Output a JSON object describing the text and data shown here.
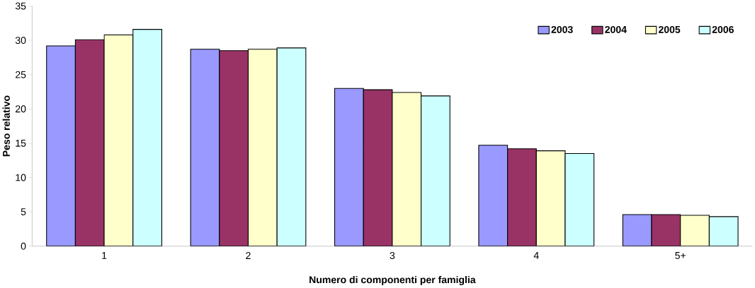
{
  "chart_data": {
    "type": "bar",
    "xlabel": "Numero di componenti per famiglia",
    "ylabel": "Peso relativo",
    "categories": [
      "1",
      "2",
      "3",
      "4",
      "5+"
    ],
    "series": [
      {
        "name": "2003",
        "color": "#9999ff",
        "values": [
          29.2,
          28.7,
          23.0,
          14.7,
          4.6
        ]
      },
      {
        "name": "2004",
        "color": "#993366",
        "values": [
          30.1,
          28.5,
          22.8,
          14.2,
          4.6
        ]
      },
      {
        "name": "2005",
        "color": "#ffffcc",
        "values": [
          30.8,
          28.7,
          22.4,
          13.9,
          4.5
        ]
      },
      {
        "name": "2006",
        "color": "#ccffff",
        "values": [
          31.6,
          28.9,
          21.9,
          13.5,
          4.3
        ]
      }
    ],
    "ylim": [
      0,
      35
    ],
    "yticks": [
      0,
      5,
      10,
      15,
      20,
      25,
      30,
      35
    ],
    "grid": false,
    "legend": "top right"
  }
}
